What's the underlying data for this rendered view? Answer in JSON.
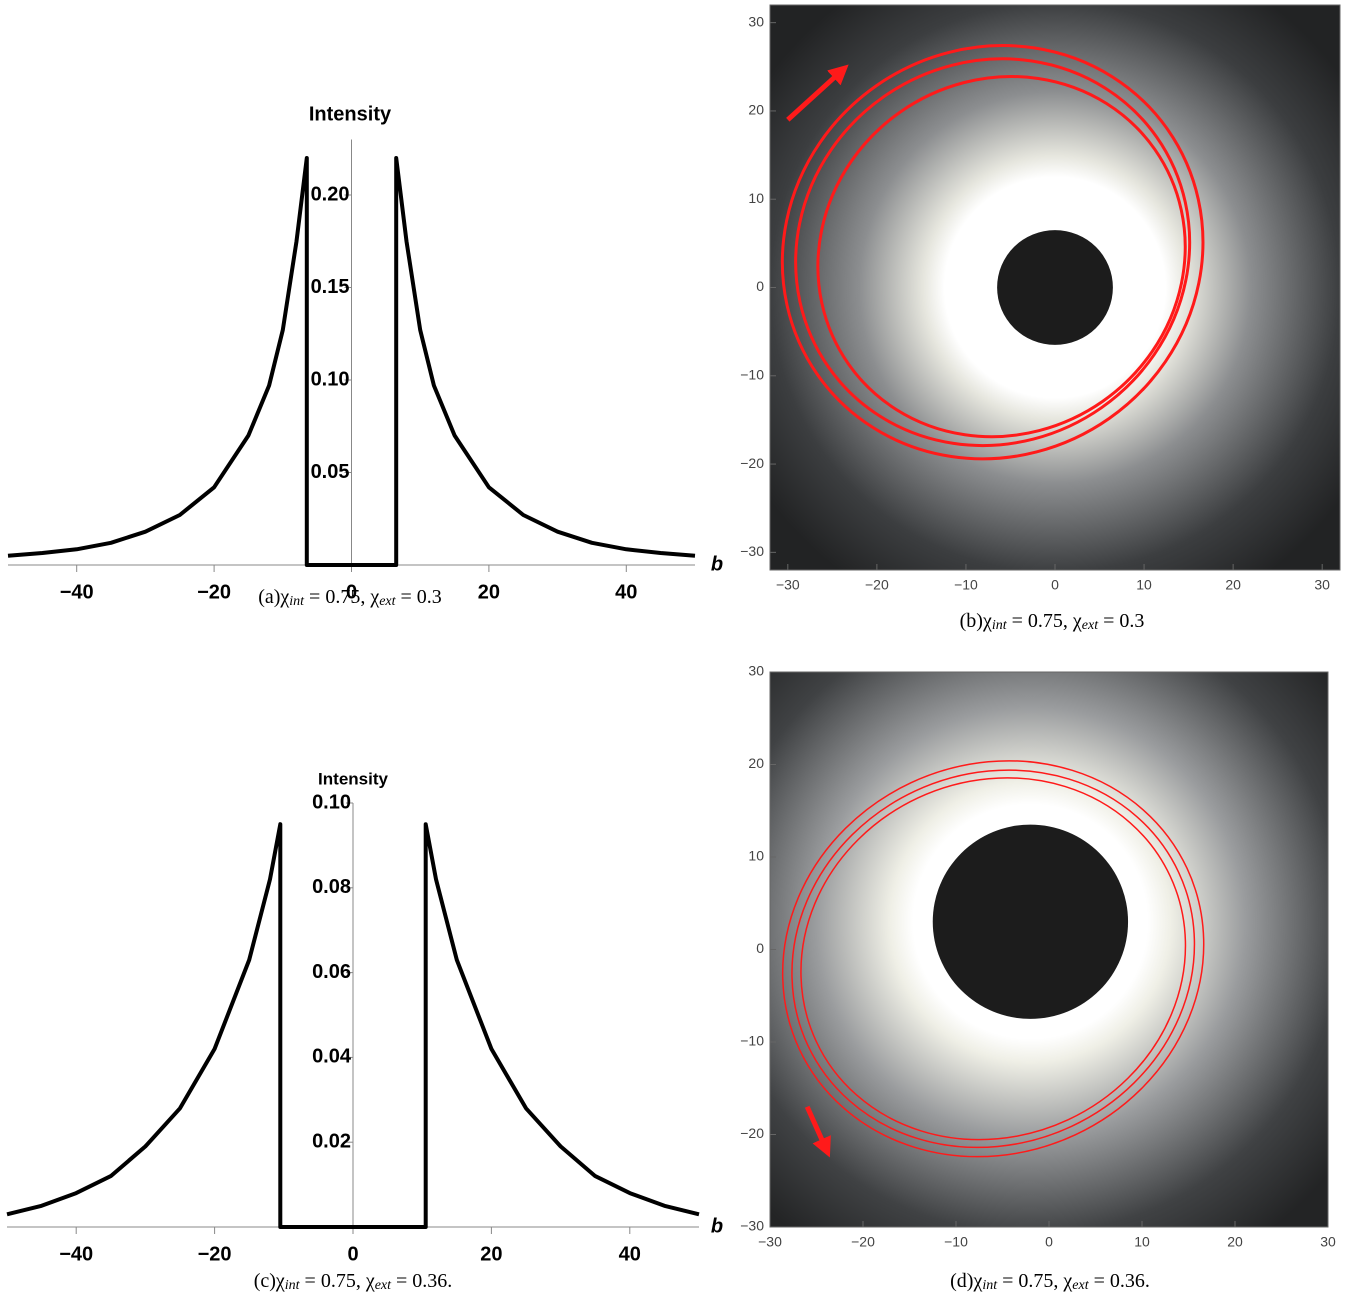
{
  "chart_data": [
    {
      "type": "line",
      "caption_parts": [
        "(a)χ",
        "int",
        " = 0.75, χ",
        "ext",
        " = 0.3"
      ],
      "ylabel": "Intensity",
      "xlabel": "b",
      "color": "#000000",
      "x": [
        -50,
        -45,
        -40,
        -35,
        -30,
        -25,
        -20,
        -15,
        -12,
        -10,
        -8,
        -6.5,
        -6.5,
        6.5,
        6.5,
        8,
        10,
        12,
        15,
        20,
        25,
        30,
        35,
        40,
        45,
        50
      ],
      "values": [
        0.005,
        0.0065,
        0.0085,
        0.012,
        0.018,
        0.027,
        0.042,
        0.07,
        0.097,
        0.127,
        0.175,
        0.22,
        0,
        0,
        0.22,
        0.175,
        0.127,
        0.097,
        0.07,
        0.042,
        0.027,
        0.018,
        0.012,
        0.0085,
        0.0065,
        0.005
      ],
      "xlim": [
        -50,
        50
      ],
      "ylim": [
        0,
        0.23
      ],
      "xticks": [
        {
          "value": -40,
          "label": "−40"
        },
        {
          "value": -20,
          "label": "−20"
        },
        0,
        20,
        40
      ],
      "yticks": [
        0.05,
        {
          "value": 0.1,
          "label": "0.10"
        },
        0.15,
        {
          "value": 0.2,
          "label": "0.20"
        }
      ]
    },
    {
      "type": "image",
      "caption_parts": [
        "(b)χ",
        "int",
        " = 0.75, χ",
        "ext",
        " = 0.3"
      ],
      "xlim": [
        -32,
        32
      ],
      "ylim": [
        -32,
        32
      ],
      "xticks": [
        {
          "value": -30,
          "label": "−30"
        },
        {
          "value": -20,
          "label": "−20"
        },
        {
          "value": -10,
          "label": "−10"
        },
        0,
        10,
        20,
        30
      ],
      "yticks": [
        {
          "value": -30,
          "label": "−30"
        },
        {
          "value": -20,
          "label": "−20"
        },
        {
          "value": -10,
          "label": "−10"
        },
        0,
        10,
        20,
        30
      ]
    },
    {
      "type": "line",
      "caption_parts": [
        "(c)χ",
        "int",
        " = 0.75, χ",
        "ext",
        " = 0.36."
      ],
      "ylabel": "Intensity",
      "xlabel": "b",
      "color": "#000000",
      "x": [
        -50,
        -45,
        -40,
        -35,
        -30,
        -25,
        -20,
        -15,
        -12,
        -10.5,
        -10.5,
        10.5,
        10.5,
        12,
        15,
        20,
        25,
        30,
        35,
        40,
        45,
        50
      ],
      "values": [
        0.003,
        0.005,
        0.008,
        0.012,
        0.019,
        0.028,
        0.042,
        0.063,
        0.082,
        0.095,
        0,
        0,
        0.095,
        0.082,
        0.063,
        0.042,
        0.028,
        0.019,
        0.012,
        0.008,
        0.005,
        0.003
      ],
      "xlim": [
        -50,
        50
      ],
      "ylim": [
        0,
        0.1
      ],
      "xticks": [
        {
          "value": -40,
          "label": "−40"
        },
        {
          "value": -20,
          "label": "−20"
        },
        0,
        20,
        40
      ],
      "yticks": [
        0.02,
        0.04,
        0.06,
        0.08,
        {
          "value": 0.1,
          "label": "0.10"
        }
      ]
    },
    {
      "type": "image",
      "caption_parts": [
        "(d)χ",
        "int",
        " = 0.75, χ",
        "ext",
        " = 0.36."
      ],
      "xlim": [
        -30,
        30
      ],
      "ylim": [
        -30,
        30
      ],
      "xticks": [
        {
          "value": -30,
          "label": "−30"
        },
        {
          "value": -20,
          "label": "−20"
        },
        {
          "value": -10,
          "label": "−10"
        },
        0,
        10,
        20,
        30
      ],
      "yticks": [
        {
          "value": -30,
          "label": "−30"
        },
        {
          "value": -20,
          "label": "−20"
        },
        {
          "value": -10,
          "label": "−10"
        },
        0,
        10,
        20,
        30
      ]
    }
  ]
}
